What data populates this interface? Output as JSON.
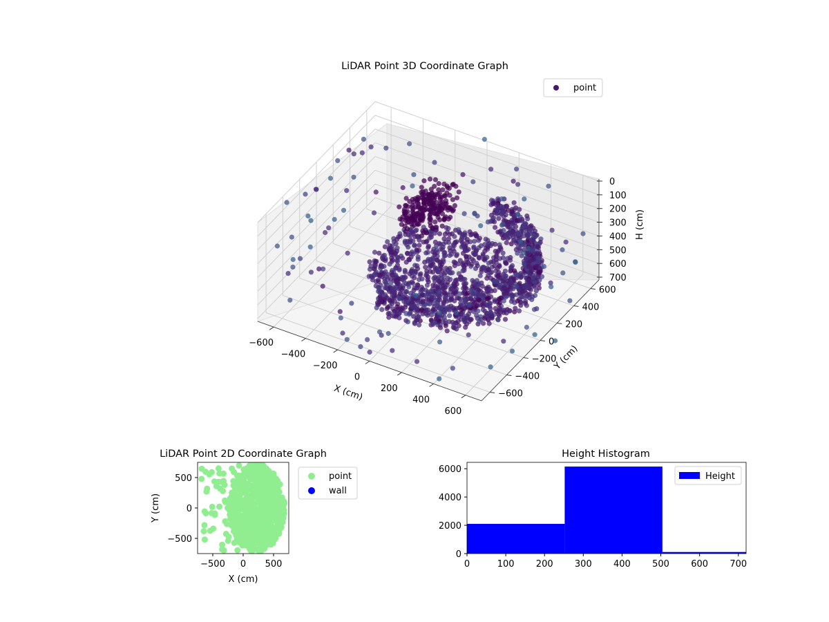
{
  "colors": {
    "viridis_low": "#440154",
    "viridis_mid": "#3b528b",
    "viridis_teal": "#21918c",
    "viridis_light": "#5ec962",
    "point_2d": "#90ee90",
    "wall_2d": "#0000ff",
    "histogram_bar": "#0000ff"
  },
  "chart_data": [
    {
      "type": "scatter",
      "projection": "3d",
      "title": "LiDAR Point 3D Coordinate Graph",
      "xlabel": "X (cm)",
      "ylabel": "Y (cm)",
      "zlabel": "H (cm)",
      "x_ticks": [
        "−600",
        "−400",
        "−200",
        "0",
        "200",
        "400",
        "600"
      ],
      "y_ticks": [
        "−600",
        "−400",
        "−200",
        "0",
        "200",
        "400",
        "600"
      ],
      "z_ticks": [
        "0",
        "100",
        "200",
        "300",
        "400",
        "500",
        "600",
        "700"
      ],
      "xlim": [
        -700,
        700
      ],
      "ylim": [
        -700,
        700
      ],
      "zlim": [
        0,
        720
      ],
      "z_inverted": true,
      "colormap": "viridis",
      "legend": {
        "entries": [
          "point"
        ],
        "placement": "top-right"
      },
      "grid": true,
      "description_series": {
        "main_cloud": "dense curved wall of points forming an arc from the rear left around to the right front, heights mostly 250–500 cm",
        "floor_disk": "dense disk of points near the center",
        "outliers": "scattered points around the perimeter"
      }
    },
    {
      "type": "scatter",
      "title": "LiDAR Point 2D Coordinate Graph",
      "xlabel": "X (cm)",
      "ylabel": "Y (cm)",
      "x_ticks": [
        "−500",
        "0",
        "500"
      ],
      "y_ticks": [
        "−500",
        "0",
        "500"
      ],
      "xlim": [
        -750,
        750
      ],
      "ylim": [
        -750,
        750
      ],
      "legend": {
        "entries": [
          "point",
          "wall"
        ],
        "placement": "outside-right"
      },
      "series": [
        {
          "name": "point",
          "color": "#90ee90"
        },
        {
          "name": "wall",
          "color": "#0000ff"
        }
      ]
    },
    {
      "type": "bar",
      "title": "Height Histogram",
      "x_ticks": [
        "0",
        "100",
        "200",
        "300",
        "400",
        "500",
        "600",
        "700"
      ],
      "y_ticks": [
        "0",
        "2000",
        "4000",
        "6000"
      ],
      "xlim": [
        0,
        720
      ],
      "ylim": [
        0,
        6450
      ],
      "legend": {
        "entries": [
          "Height"
        ],
        "placement": "top-right"
      },
      "bins": [
        {
          "start": 0,
          "end": 252,
          "count": 2100
        },
        {
          "start": 252,
          "end": 504,
          "count": 6150
        },
        {
          "start": 504,
          "end": 720,
          "count": 110
        }
      ]
    }
  ]
}
